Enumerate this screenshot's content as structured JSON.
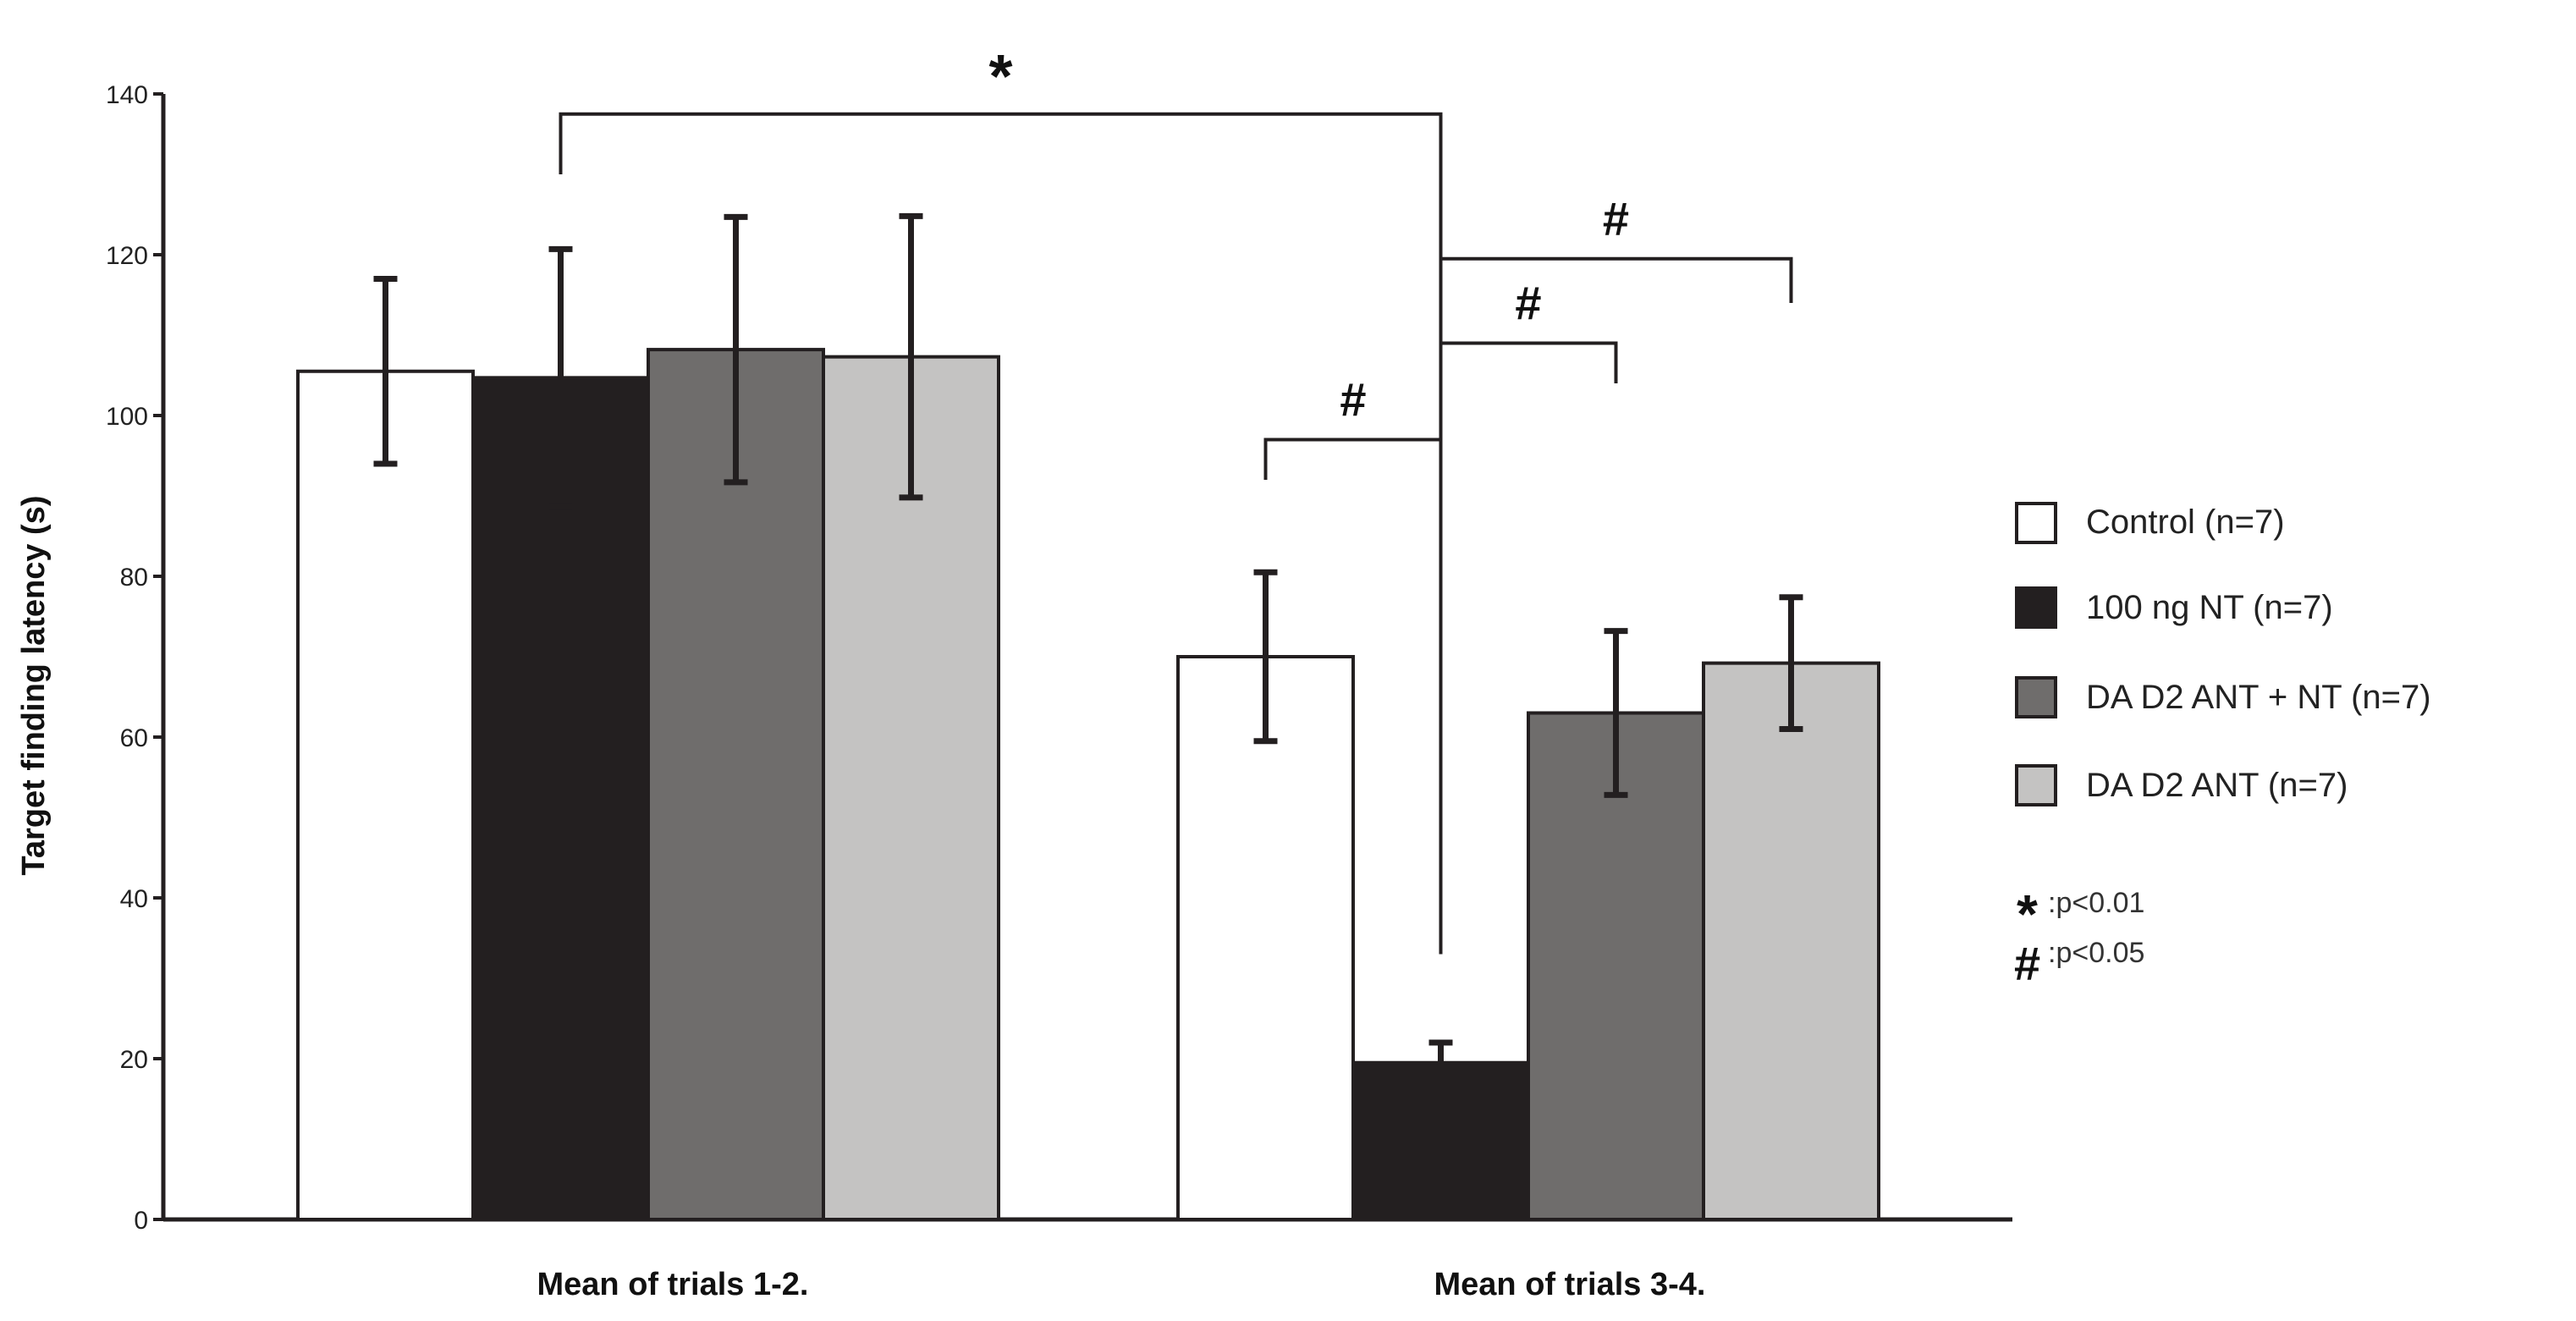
{
  "chart_data": {
    "type": "bar",
    "title": "",
    "xlabel": "",
    "ylabel": "Target finding latency (s)",
    "ylim": [
      0,
      140
    ],
    "yticks": [
      0,
      20,
      40,
      60,
      80,
      100,
      120,
      140
    ],
    "grid": false,
    "legend_position": "right",
    "categories": [
      "Mean of trials 1-2.",
      "Mean of trials 3-4."
    ],
    "series": [
      {
        "name": "Control (n=7)",
        "color": "#ffffff",
        "values": [
          105.5,
          70
        ],
        "errors": [
          11.5,
          10.5
        ]
      },
      {
        "name": "100 ng NT (n=7)",
        "color": "#231f20",
        "values": [
          104.7,
          19.5
        ],
        "errors": [
          16,
          2.5
        ]
      },
      {
        "name": "DA D2 ANT + NT (n=7)",
        "color": "#6f6d6c",
        "values": [
          108.2,
          63
        ],
        "errors": [
          16.5,
          10.2
        ]
      },
      {
        "name": "DA D2 ANT (n=7)",
        "color": "#c4c3c2",
        "values": [
          107.3,
          69.2
        ],
        "errors": [
          17.5,
          8.2
        ]
      }
    ],
    "significance_brackets": [
      {
        "from_category": 0,
        "from_series": 1,
        "to_category": 1,
        "to_series": 1,
        "bracket_value": 137.5,
        "left_drop_value": 130,
        "right_drop_value": 33,
        "label": "*"
      },
      {
        "from_category": 1,
        "from_series": 0,
        "to_category": 1,
        "to_series": 1,
        "bracket_value": 97,
        "left_drop_value": 92,
        "right_drop_value": 97,
        "label": "#"
      },
      {
        "from_category": 1,
        "from_series": 1,
        "to_category": 1,
        "to_series": 2,
        "bracket_value": 109,
        "left_drop_value": 105,
        "right_drop_value": 104,
        "label": "#"
      },
      {
        "from_category": 1,
        "from_series": 1,
        "to_category": 1,
        "to_series": 3,
        "bracket_value": 119.5,
        "left_drop_value": 117,
        "right_drop_value": 114,
        "label": "#"
      }
    ],
    "significance_notes": [
      {
        "symbol": "*",
        "text": ":p<0.01"
      },
      {
        "symbol": "#",
        "text": ":p<0.05"
      }
    ]
  }
}
